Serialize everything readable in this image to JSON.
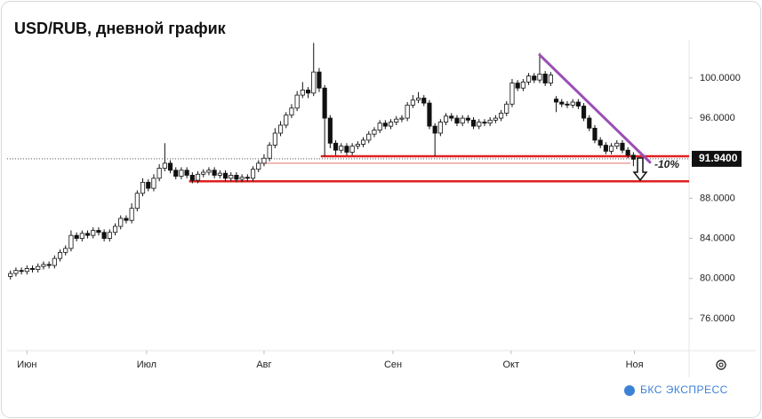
{
  "chart_data": {
    "type": "candlestick",
    "title": "USD/RUB, дневной график",
    "open": [
      80.2,
      80.5,
      80.8,
      80.7,
      81.0,
      80.9,
      81.2,
      81.4,
      81.3,
      82.0,
      82.6,
      83.0,
      84.3,
      84.0,
      84.5,
      84.3,
      84.8,
      84.6,
      84.0,
      84.6,
      85.2,
      86.0,
      85.8,
      87.0,
      88.5,
      89.6,
      89.0,
      90.0,
      91.0,
      91.5,
      90.8,
      90.2,
      90.8,
      90.3,
      89.8,
      90.4,
      90.6,
      90.8,
      90.3,
      90.5,
      90.0,
      90.3,
      89.9,
      90.1,
      90.0,
      90.9,
      91.5,
      92.0,
      93.3,
      94.5,
      95.3,
      96.3,
      97.0,
      98.3,
      98.8,
      98.5,
      100.6,
      99.0,
      96.0,
      93.5,
      92.8,
      93.2,
      92.6,
      93.2,
      93.4,
      93.8,
      94.4,
      94.8,
      95.5,
      95.2,
      95.6,
      95.9,
      96.0,
      97.3,
      97.8,
      98.0,
      97.5,
      95.2,
      94.5,
      95.6,
      96.2,
      96.0,
      95.5,
      96.0,
      95.8,
      95.2,
      95.6,
      95.5,
      95.8,
      96.0,
      96.5,
      97.4,
      99.5,
      99.0,
      99.6,
      100.2,
      99.8,
      100.4,
      99.5,
      97.9,
      97.6,
      97.4,
      97.3,
      97.6,
      97.2,
      96.0,
      95.0,
      93.8,
      93.3,
      92.7,
      93.2,
      93.5,
      92.8,
      92.3
    ],
    "high": [
      80.8,
      81.1,
      81.1,
      81.3,
      81.3,
      81.5,
      81.7,
      81.7,
      82.3,
      82.9,
      83.3,
      84.8,
      84.6,
      84.8,
      84.8,
      85.1,
      85.1,
      84.9,
      84.9,
      85.5,
      86.3,
      86.3,
      87.5,
      88.8,
      90.0,
      89.9,
      90.4,
      91.4,
      93.5,
      91.8,
      91.1,
      91.1,
      91.1,
      90.6,
      90.7,
      90.9,
      91.1,
      91.1,
      90.8,
      90.8,
      90.6,
      90.6,
      90.4,
      90.4,
      91.2,
      91.8,
      92.4,
      93.6,
      95.0,
      95.7,
      96.6,
      97.4,
      98.7,
      99.6,
      99.1,
      103.5,
      101.0,
      99.3,
      96.3,
      93.8,
      93.5,
      93.5,
      93.5,
      93.7,
      94.1,
      94.7,
      95.1,
      95.8,
      95.8,
      95.9,
      96.2,
      96.3,
      97.6,
      98.3,
      98.6,
      98.3,
      97.8,
      95.5,
      95.9,
      96.5,
      96.5,
      96.3,
      96.3,
      96.3,
      96.1,
      95.9,
      95.9,
      96.1,
      96.3,
      96.8,
      97.7,
      99.9,
      99.8,
      99.9,
      100.5,
      100.5,
      102.5,
      100.7,
      100.6,
      98.2,
      97.9,
      97.7,
      97.9,
      97.9,
      97.5,
      96.3,
      95.3,
      94.1,
      93.6,
      93.5,
      93.8,
      93.8,
      93.1,
      92.6
    ],
    "low": [
      79.9,
      80.2,
      80.4,
      80.4,
      80.6,
      80.6,
      80.9,
      81.0,
      81.0,
      81.7,
      82.3,
      82.7,
      83.7,
      83.7,
      84.0,
      84.0,
      84.3,
      83.7,
      83.7,
      84.3,
      84.9,
      85.5,
      85.5,
      86.7,
      88.2,
      88.7,
      88.7,
      89.7,
      90.7,
      90.5,
      89.9,
      89.9,
      90.0,
      89.5,
      89.5,
      90.1,
      90.3,
      90.0,
      90.0,
      89.7,
      89.7,
      89.6,
      89.6,
      89.7,
      89.7,
      90.6,
      91.2,
      91.7,
      93.0,
      94.2,
      95.0,
      96.0,
      96.7,
      98.0,
      98.0,
      98.2,
      98.6,
      92.2,
      93.0,
      92.3,
      92.5,
      92.3,
      92.3,
      92.9,
      93.1,
      93.5,
      94.1,
      94.5,
      94.9,
      94.9,
      95.3,
      95.6,
      95.7,
      97.0,
      97.5,
      97.2,
      94.9,
      92.2,
      94.2,
      95.3,
      95.7,
      95.2,
      95.2,
      95.5,
      94.9,
      94.9,
      95.2,
      95.2,
      95.5,
      95.7,
      96.2,
      97.1,
      98.7,
      98.7,
      99.3,
      99.5,
      99.5,
      99.2,
      99.2,
      96.6,
      97.1,
      97.0,
      97.0,
      96.9,
      95.7,
      94.7,
      93.5,
      93.0,
      92.4,
      92.4,
      92.9,
      92.5,
      92.0,
      91.2
    ],
    "close": [
      80.5,
      80.8,
      80.7,
      81.0,
      80.9,
      81.2,
      81.4,
      81.3,
      82.0,
      82.6,
      83.0,
      84.3,
      84.0,
      84.5,
      84.3,
      84.8,
      84.6,
      84.0,
      84.6,
      85.2,
      86.0,
      85.8,
      87.0,
      88.5,
      89.6,
      89.0,
      90.0,
      91.0,
      91.5,
      90.8,
      90.2,
      90.8,
      90.3,
      89.8,
      90.4,
      90.6,
      90.8,
      90.3,
      90.5,
      90.0,
      90.3,
      89.9,
      90.1,
      90.0,
      90.9,
      91.5,
      92.0,
      93.3,
      94.5,
      95.3,
      96.3,
      97.0,
      98.3,
      98.8,
      98.5,
      100.6,
      99.0,
      96.0,
      93.5,
      92.8,
      93.2,
      92.6,
      93.2,
      93.4,
      93.8,
      94.4,
      94.8,
      95.5,
      95.2,
      95.6,
      95.9,
      96.0,
      97.3,
      97.8,
      98.0,
      97.5,
      95.2,
      94.5,
      95.6,
      96.2,
      96.0,
      95.5,
      96.0,
      95.8,
      95.2,
      95.6,
      95.5,
      95.8,
      96.0,
      96.5,
      97.4,
      99.5,
      99.0,
      99.6,
      100.2,
      99.8,
      100.4,
      99.5,
      100.3,
      97.6,
      97.4,
      97.3,
      97.6,
      97.2,
      96.0,
      95.0,
      93.8,
      93.3,
      92.7,
      93.2,
      93.5,
      92.8,
      92.3,
      91.9
    ],
    "up_color": "#ffffff",
    "down_color": "#111111",
    "outline_color": "#111111",
    "xlim": [
      -0.6,
      123.1
    ],
    "xticks": [
      {
        "value": 3,
        "label": "Июн"
      },
      {
        "value": 24.7,
        "label": "Июл"
      },
      {
        "value": 46,
        "label": "Авг"
      },
      {
        "value": 69.4,
        "label": "Сен"
      },
      {
        "value": 90.8,
        "label": "Окт"
      },
      {
        "value": 113.2,
        "label": "Ноя"
      }
    ],
    "ylim": [
      72.8,
      103.8
    ],
    "yticks": [
      {
        "value": 76,
        "label": "76.0000"
      },
      {
        "value": 80,
        "label": "80.0000"
      },
      {
        "value": 84,
        "label": "84.0000"
      },
      {
        "value": 88,
        "label": "88.0000"
      },
      {
        "value": 96,
        "label": "96.0000"
      },
      {
        "value": 100,
        "label": "100.0000"
      }
    ],
    "last_price": 91.94,
    "last_price_label": "91.9400",
    "levels": [
      {
        "value": 92.2,
        "from": 56.3,
        "color": "#e02020"
      },
      {
        "value": 89.7,
        "from": 32.4,
        "color": "#e02020"
      },
      {
        "value": 91.5,
        "from": 45,
        "to": 112.5,
        "color": "#e07070"
      }
    ],
    "trendline": {
      "x": [
        96,
        116
      ],
      "values": [
        102.3,
        91.6
      ],
      "color": "#9b4fb5"
    },
    "annotation": "-10%",
    "brand": "БКС ЭКСПРЕСС"
  }
}
